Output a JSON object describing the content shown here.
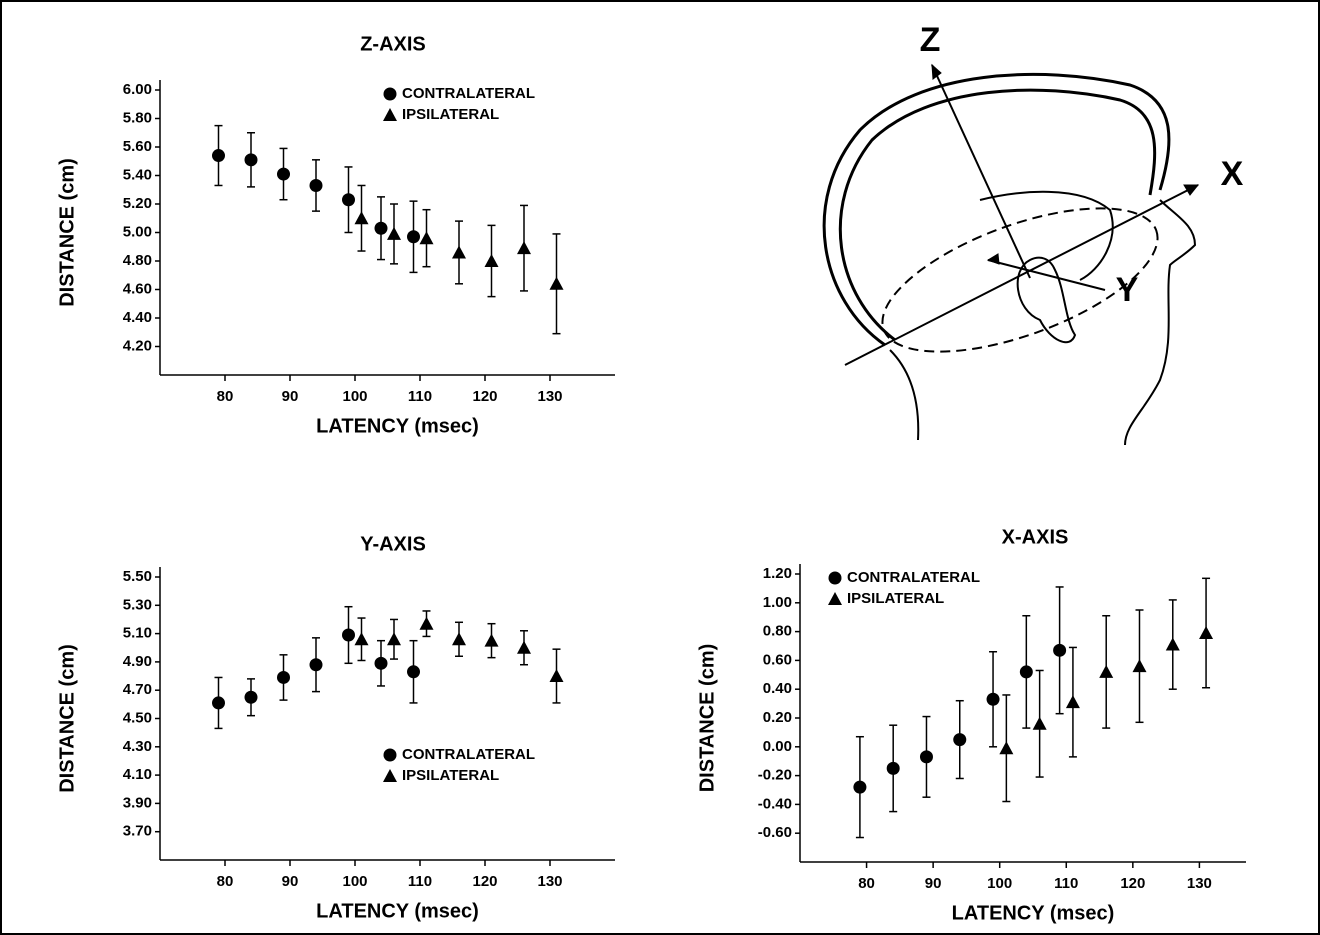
{
  "chart_data": [
    {
      "type": "scatter",
      "title": "Z-AXIS",
      "x_label": "LATENCY (msec)",
      "y_label": "DISTANCE (cm)",
      "xlim": [
        70,
        140
      ],
      "xticks": [
        80,
        90,
        100,
        110,
        120,
        130
      ],
      "ylim": [
        4.0,
        6.0
      ],
      "yticks": [
        {
          "value": 4.2,
          "label": "4.20"
        },
        {
          "value": 4.4,
          "label": "4.40"
        },
        {
          "value": 4.6,
          "label": "4.60"
        },
        {
          "value": 4.8,
          "label": "4.80"
        },
        {
          "value": 5.0,
          "label": "5.00"
        },
        {
          "value": 5.2,
          "label": "5.20"
        },
        {
          "value": 5.4,
          "label": "5.40"
        },
        {
          "value": 5.6,
          "label": "5.60"
        },
        {
          "value": 5.8,
          "label": "5.80"
        },
        {
          "value": 6.0,
          "label": "6.00"
        }
      ],
      "legend": "upper right",
      "series": [
        {
          "name": "CONTRALATERAL",
          "marker": "circle",
          "color": "#000000",
          "x": [
            79,
            84,
            89,
            94,
            99,
            104,
            109
          ],
          "values": [
            5.54,
            5.51,
            5.41,
            5.33,
            5.23,
            5.03,
            4.97
          ],
          "errors": [
            0.21,
            0.19,
            0.18,
            0.18,
            0.23,
            0.22,
            0.25
          ]
        },
        {
          "name": "IPSILATERAL",
          "marker": "triangle",
          "color": "#000000",
          "x": [
            101,
            106,
            111,
            116,
            121,
            126,
            131
          ],
          "values": [
            5.1,
            4.99,
            4.96,
            4.86,
            4.8,
            4.89,
            4.64
          ],
          "errors": [
            0.23,
            0.21,
            0.2,
            0.22,
            0.25,
            0.3,
            0.35
          ]
        }
      ]
    },
    {
      "type": "scatter",
      "title": "Y-AXIS",
      "x_label": "LATENCY (msec)",
      "y_label": "DISTANCE (cm)",
      "xlim": [
        70,
        140
      ],
      "xticks": [
        80,
        90,
        100,
        110,
        120,
        130
      ],
      "ylim": [
        3.5,
        5.5
      ],
      "yticks": [
        {
          "value": 3.7,
          "label": "3.70"
        },
        {
          "value": 3.9,
          "label": "3.90"
        },
        {
          "value": 4.1,
          "label": "4.10"
        },
        {
          "value": 4.3,
          "label": "4.30"
        },
        {
          "value": 4.5,
          "label": "4.50"
        },
        {
          "value": 4.7,
          "label": "4.70"
        },
        {
          "value": 4.9,
          "label": "4.90"
        },
        {
          "value": 5.1,
          "label": "5.10"
        },
        {
          "value": 5.3,
          "label": "5.30"
        },
        {
          "value": 5.5,
          "label": "5.50"
        }
      ],
      "legend": "lower right",
      "series": [
        {
          "name": "CONTRALATERAL",
          "marker": "circle",
          "color": "#000000",
          "x": [
            79,
            84,
            89,
            94,
            99,
            104,
            109
          ],
          "values": [
            4.61,
            4.65,
            4.79,
            4.88,
            5.09,
            4.89,
            4.83
          ],
          "errors": [
            0.18,
            0.13,
            0.16,
            0.19,
            0.2,
            0.16,
            0.22
          ]
        },
        {
          "name": "IPSILATERAL",
          "marker": "triangle",
          "color": "#000000",
          "x": [
            101,
            106,
            111,
            116,
            121,
            126,
            131
          ],
          "values": [
            5.06,
            5.06,
            5.17,
            5.06,
            5.05,
            5.0,
            4.8
          ],
          "errors": [
            0.15,
            0.14,
            0.09,
            0.12,
            0.12,
            0.12,
            0.19
          ]
        }
      ]
    },
    {
      "type": "scatter",
      "title": "X-AXIS",
      "x_label": "LATENCY (msec)",
      "y_label": "DISTANCE (cm)",
      "xlim": [
        70,
        137
      ],
      "xticks": [
        80,
        90,
        100,
        110,
        120,
        130
      ],
      "ylim": [
        -0.8,
        1.2
      ],
      "yticks": [
        {
          "value": -0.6,
          "label": "-0.60"
        },
        {
          "value": -0.4,
          "label": "-0.40"
        },
        {
          "value": -0.2,
          "label": "-0.20"
        },
        {
          "value": 0,
          "label": "0.00"
        },
        {
          "value": 0.2,
          "label": "0.20"
        },
        {
          "value": 0.4,
          "label": "0.40"
        },
        {
          "value": 0.6,
          "label": "0.60"
        },
        {
          "value": 0.8,
          "label": "0.80"
        },
        {
          "value": 1.0,
          "label": "1.00"
        },
        {
          "value": 1.2,
          "label": "1.20"
        }
      ],
      "legend": "upper left",
      "series": [
        {
          "name": "CONTRALATERAL",
          "marker": "circle",
          "color": "#000000",
          "x": [
            79,
            84,
            89,
            94,
            99,
            104,
            109
          ],
          "values": [
            -0.28,
            -0.15,
            -0.07,
            0.05,
            0.33,
            0.52,
            0.67
          ],
          "errors": [
            0.35,
            0.3,
            0.28,
            0.27,
            0.33,
            0.39,
            0.44
          ]
        },
        {
          "name": "IPSILATERAL",
          "marker": "triangle",
          "color": "#000000",
          "x": [
            101,
            106,
            111,
            116,
            121,
            126,
            131
          ],
          "values": [
            -0.01,
            0.16,
            0.31,
            0.52,
            0.56,
            0.71,
            0.79
          ],
          "errors": [
            0.37,
            0.37,
            0.38,
            0.39,
            0.39,
            0.31,
            0.38
          ]
        }
      ]
    }
  ],
  "diagram": {
    "labels": [
      "Z",
      "X",
      "Y"
    ]
  }
}
